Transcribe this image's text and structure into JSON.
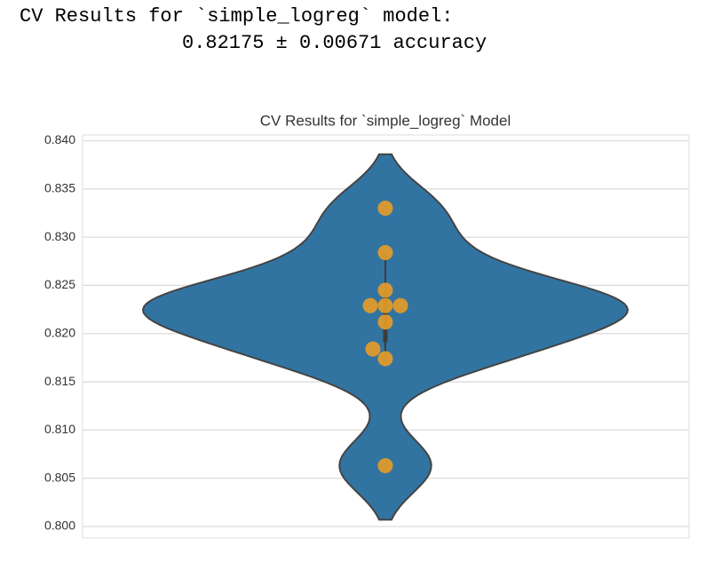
{
  "output": {
    "lines": [
      "CV Results for `simple_logreg` model:",
      "0.82175 ± 0.00671 accuracy"
    ]
  },
  "chart_data": {
    "type": "violin",
    "title": "CV Results for `simple_logreg` Model",
    "values": [
      0.833,
      0.8284,
      0.8245,
      0.8229,
      0.8229,
      0.8229,
      0.8212,
      0.8184,
      0.8174,
      0.8063
    ],
    "ylim": [
      0.7988,
      0.8406
    ],
    "yticks": [
      {
        "value": 0.8,
        "label": "0.800"
      },
      0.805,
      {
        "value": 0.81,
        "label": "0.810"
      },
      0.815,
      {
        "value": 0.82,
        "label": "0.820"
      },
      0.825,
      {
        "value": 0.83,
        "label": "0.830"
      },
      0.835,
      {
        "value": 0.84,
        "label": "0.840"
      }
    ],
    "grid": true,
    "color": "#3274a1",
    "point_color": "#e89c26"
  }
}
